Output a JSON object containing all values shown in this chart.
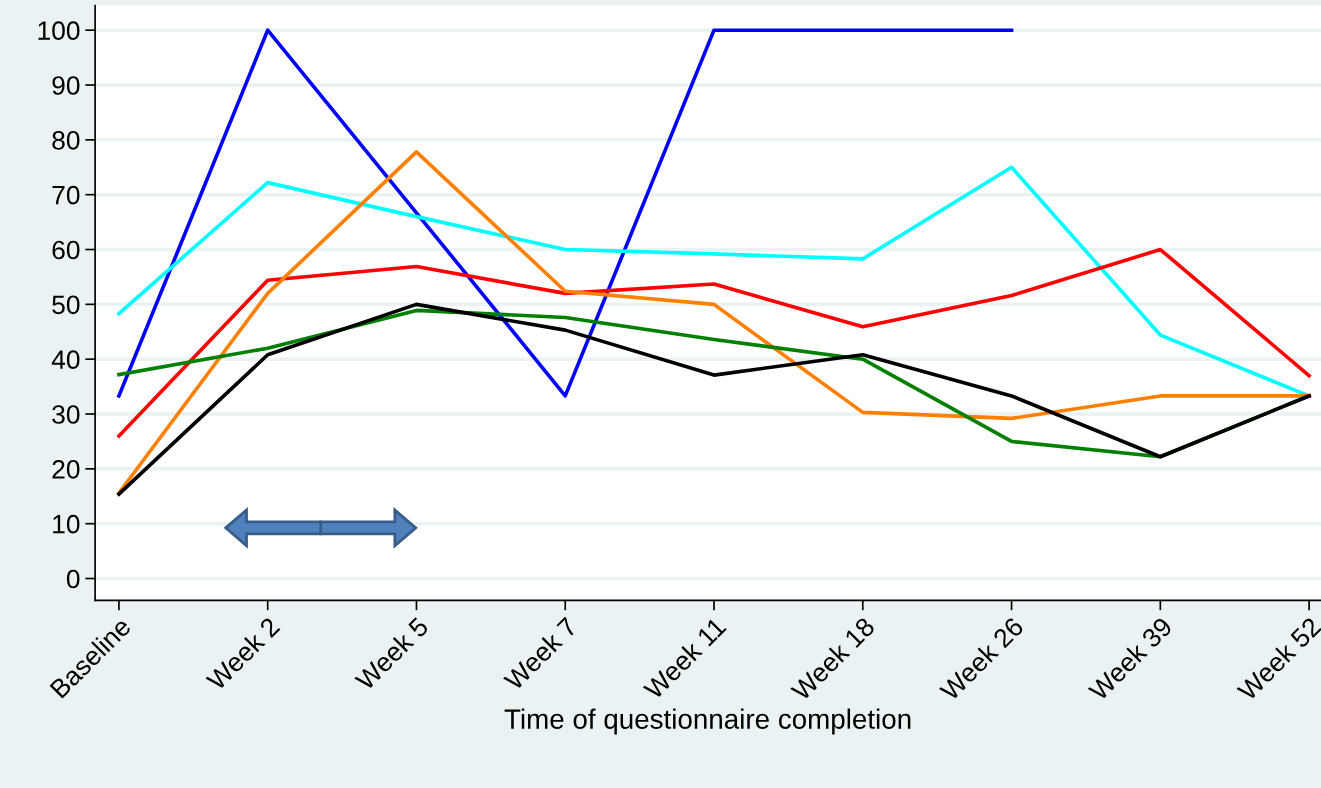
{
  "chart_data": {
    "type": "line",
    "xlabel": "Time of questionnaire completion",
    "categories": [
      "Baseline",
      "Week 2",
      "Week 5",
      "Week 7",
      "Week 11",
      "Week 18",
      "Week 26",
      "Week 39",
      "Week 52"
    ],
    "series": [
      {
        "color": "#0000ff",
        "values": [
          33.3,
          100,
          66.7,
          33.3,
          100,
          100,
          100,
          null,
          null
        ]
      },
      {
        "color": "#00ffff",
        "values": [
          48.3,
          72.2,
          66,
          60,
          59.2,
          58.3,
          75,
          44.4,
          33.3
        ]
      },
      {
        "color": "#ff0000",
        "values": [
          26,
          54.4,
          56.9,
          52,
          53.7,
          45.9,
          51.6,
          60,
          37
        ]
      },
      {
        "color": "#ff8000",
        "values": [
          15.6,
          52,
          77.8,
          52.4,
          50,
          30.3,
          29.2,
          33.3,
          33.3
        ]
      },
      {
        "color": "#008000",
        "values": [
          37.2,
          42,
          48.9,
          47.6,
          43.6,
          40,
          25,
          22.2,
          33.3
        ]
      },
      {
        "color": "#000000",
        "values": [
          15.4,
          40.8,
          50,
          45.3,
          37.1,
          40.8,
          33.3,
          22.2,
          33.3
        ]
      }
    ],
    "ylim": [
      -4,
      104.5
    ],
    "yticks": [
      0,
      10,
      20,
      30,
      40,
      50,
      60,
      70,
      80,
      90,
      100
    ],
    "grid": "y",
    "legend": false,
    "marker": "none",
    "line_style": "solid"
  }
}
